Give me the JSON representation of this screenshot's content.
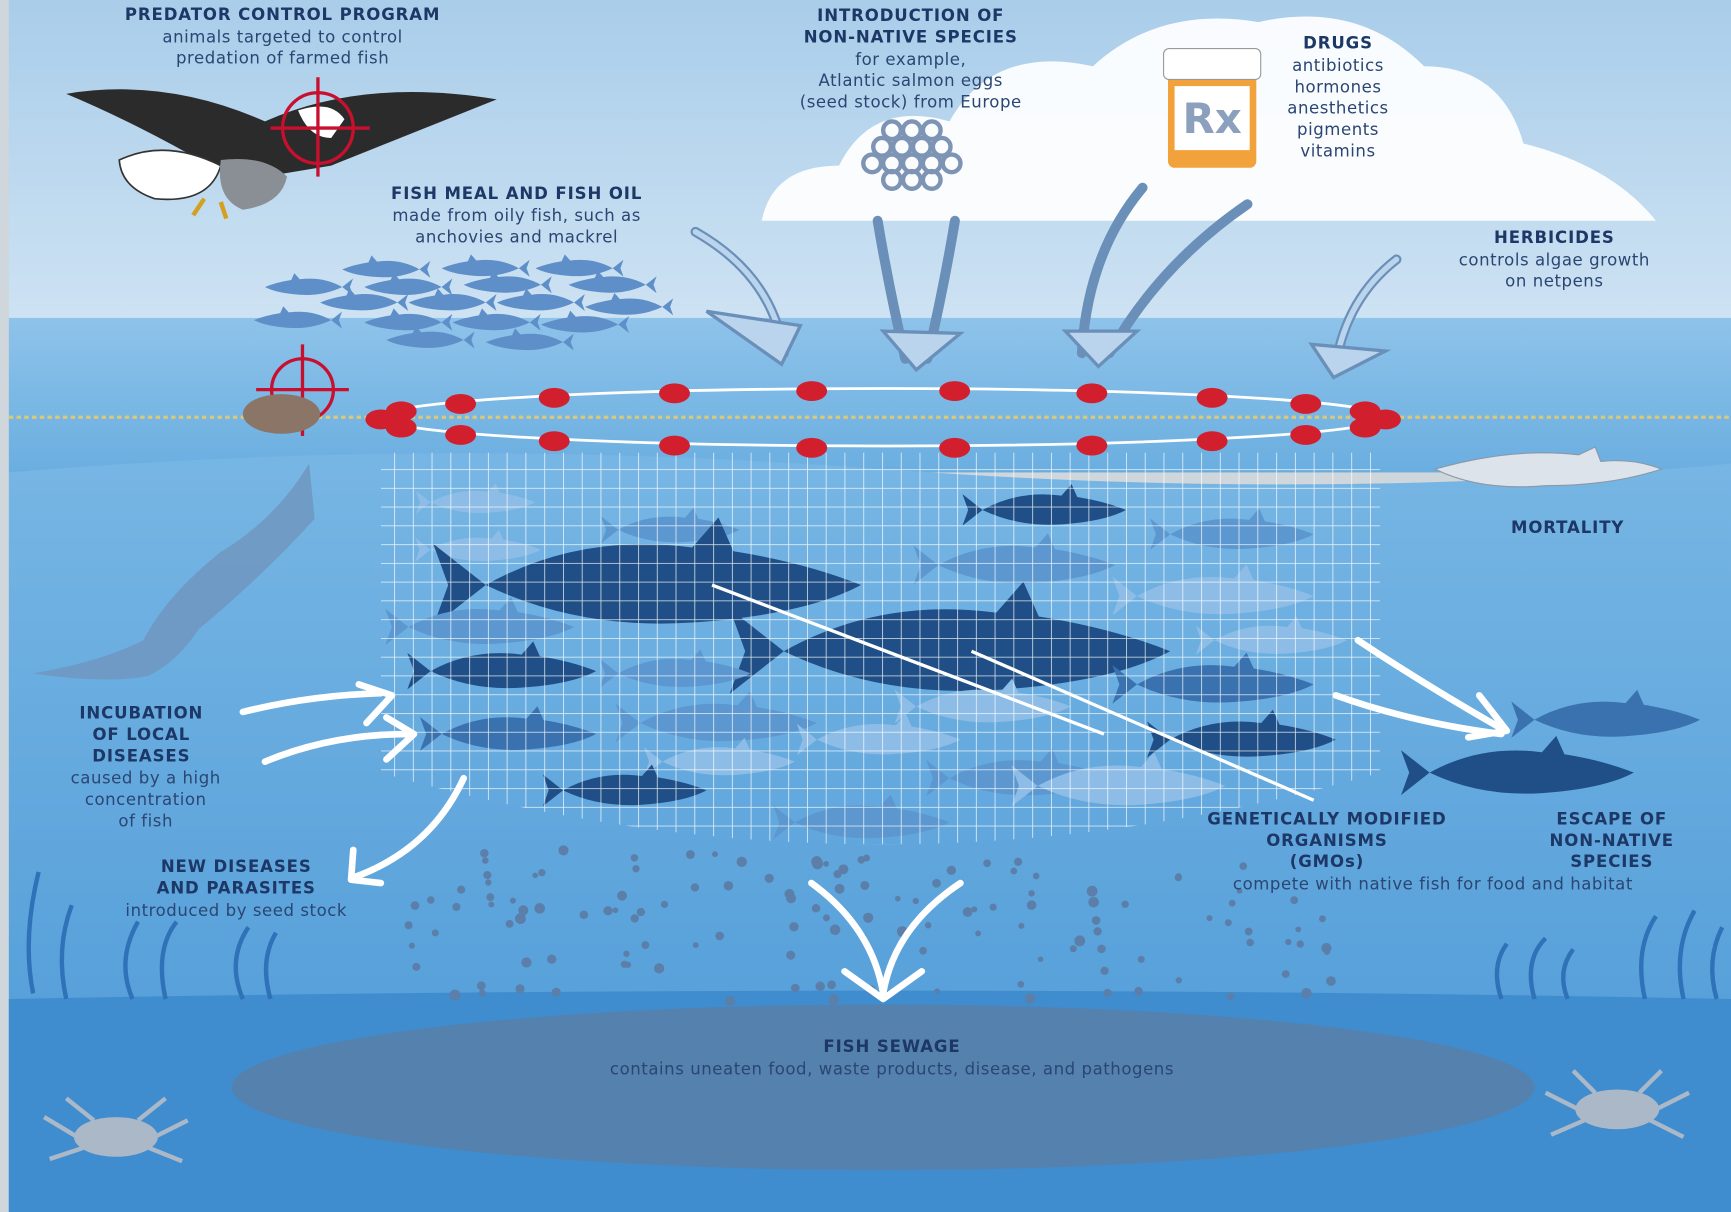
{
  "labels": [
    {
      "title": [
        "PREDATOR CONTROL PROGRAM"
      ],
      "text": [
        "animals targeted to control",
        "predation of farmed fish"
      ]
    },
    {
      "title": [
        "INTRODUCTION OF",
        "NON-NATIVE SPECIES"
      ],
      "text": [
        "for example,",
        "Atlantic salmon eggs",
        "(seed stock) from Europe"
      ]
    },
    {
      "title": [
        "DRUGS"
      ],
      "text": [
        "antibiotics",
        "hormones",
        "anesthetics",
        "pigments",
        "vitamins"
      ]
    },
    {
      "title": [
        "FISH MEAL AND FISH OIL"
      ],
      "text": [
        "made from oily fish, such as",
        "anchovies and mackrel"
      ]
    },
    {
      "title": [
        "HERBICIDES"
      ],
      "text": [
        "controls algae growth",
        "on netpens"
      ]
    },
    {
      "title": [
        "MORTALITY"
      ],
      "text": []
    },
    {
      "title": [
        "INCUBATION",
        "OF LOCAL",
        "DISEASES"
      ],
      "text": [
        "caused by a high",
        "concentration",
        "of fish"
      ]
    },
    {
      "title": [
        "NEW DISEASES",
        "AND PARASITES"
      ],
      "text": [
        "introduced by seed stock"
      ]
    },
    {
      "title": [
        "GENETICALLY MODIFIED",
        "ORGANISMS",
        "(GMOs)"
      ],
      "text": [
        "compete with native fish for food and habitat"
      ]
    },
    {
      "title": [
        "ESCAPE OF",
        "NON-NATIVE",
        "SPECIES"
      ],
      "text": []
    },
    {
      "title": [
        "FISH SEWAGE"
      ],
      "text": [
        "contains uneaten food, waste products, disease, and pathogens"
      ]
    },
    {
      "title": [],
      "text": []
    }
  ],
  "pill_label": "Rx"
}
